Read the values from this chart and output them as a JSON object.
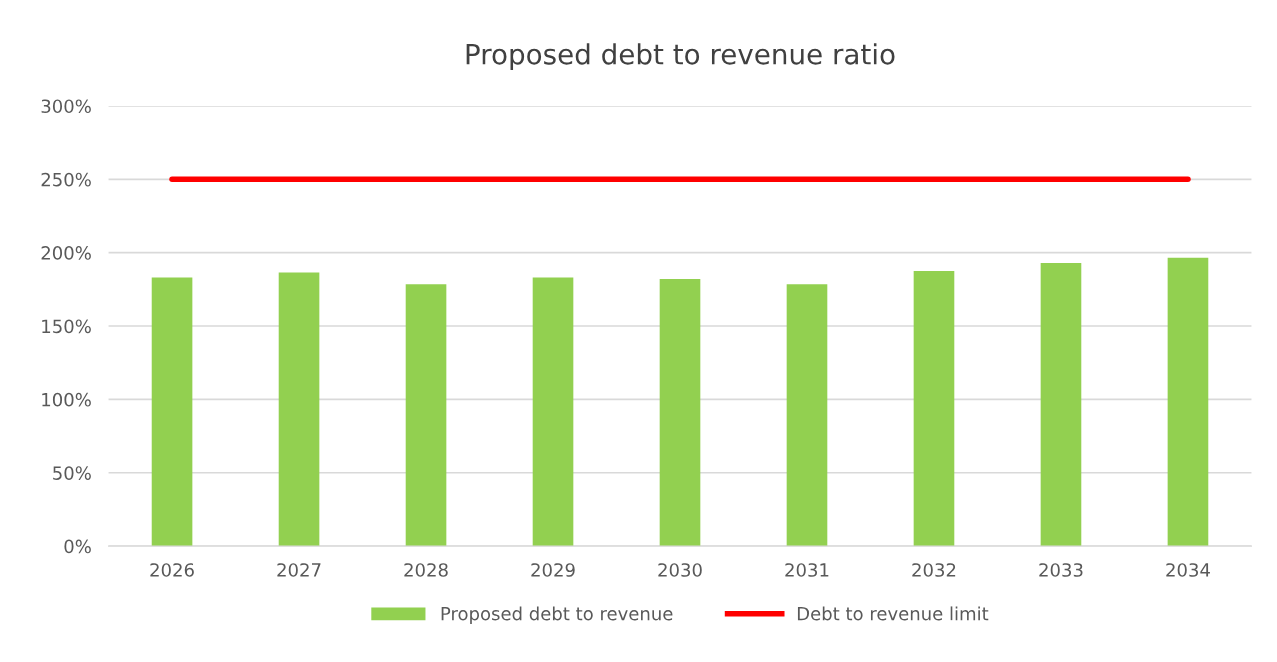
{
  "chart_data": {
    "type": "bar",
    "title": "Proposed debt to revenue ratio",
    "categories": [
      "2026",
      "2027",
      "2028",
      "2029",
      "2030",
      "2031",
      "2032",
      "2033",
      "2034"
    ],
    "series": [
      {
        "name": "Proposed debt to revenue",
        "color": "#92d050",
        "values": [
          183,
          186.5,
          178.5,
          183,
          182,
          178.5,
          187.5,
          193,
          196.5
        ]
      },
      {
        "name": "Debt to revenue limit",
        "color": "#ff0000",
        "type": "line",
        "values": [
          250,
          250,
          250,
          250,
          250,
          250,
          250,
          250,
          250
        ]
      }
    ],
    "ylim": [
      0,
      300
    ],
    "yticks": [
      {
        "value": 0,
        "label": "0%"
      },
      {
        "value": 50,
        "label": "50%"
      },
      {
        "value": 100,
        "label": "100%"
      },
      {
        "value": 150,
        "label": "150%"
      },
      {
        "value": 200,
        "label": "200%"
      },
      {
        "value": 250,
        "label": "250%"
      },
      {
        "value": 300,
        "label": "300%"
      }
    ],
    "grid": "y",
    "legend": "bottom"
  }
}
